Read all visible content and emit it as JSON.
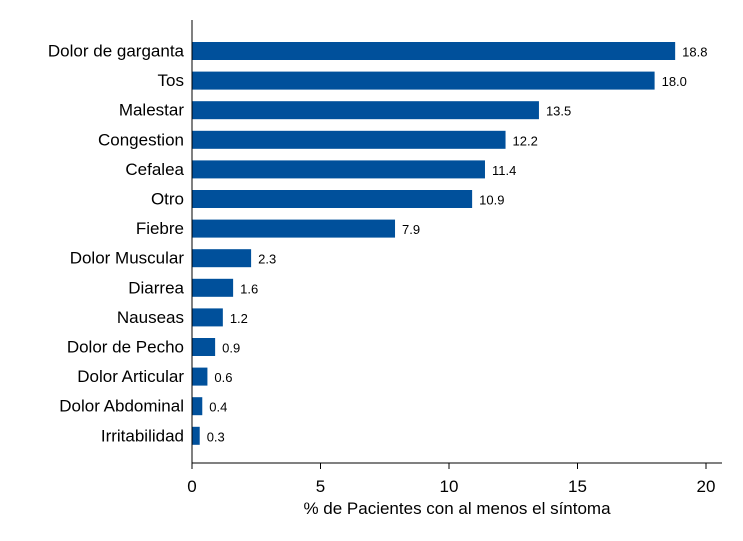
{
  "chart_data": {
    "type": "bar",
    "orientation": "horizontal",
    "title": "",
    "xlabel": "% de Pacientes con al menos el síntoma",
    "ylabel": "",
    "xlim": [
      0,
      20
    ],
    "xticks": [
      "0",
      "5",
      "10",
      "15",
      "20"
    ],
    "grid": false,
    "bar_color": "#00509b",
    "categories": [
      "Dolor de garganta",
      "Tos",
      "Malestar",
      "Congestion",
      "Cefalea",
      "Otro",
      "Fiebre",
      "Dolor Muscular",
      "Diarrea",
      "Nauseas",
      "Dolor de Pecho",
      "Dolor Articular",
      "Dolor Abdominal",
      "Irritabilidad"
    ],
    "values": [
      18.8,
      18.0,
      13.5,
      12.2,
      11.4,
      10.9,
      7.9,
      2.3,
      1.6,
      1.2,
      0.9,
      0.6,
      0.4,
      0.3
    ],
    "value_labels": [
      "18.8",
      "18.0",
      "13.5",
      "12.2",
      "11.4",
      "10.9",
      "7.9",
      "2.3",
      "1.6",
      "1.2",
      "0.9",
      "0.6",
      "0.4",
      "0.3"
    ]
  }
}
